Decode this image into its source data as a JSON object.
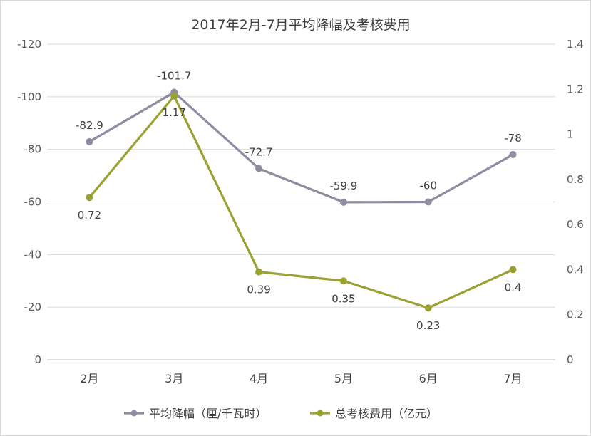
{
  "chart_data": {
    "type": "line",
    "title": "2017年2月-7月平均降幅及考核费用",
    "categories": [
      "2月",
      "3月",
      "4月",
      "5月",
      "6月",
      "7月"
    ],
    "series": [
      {
        "name": "平均降幅（厘/千瓦时）",
        "axis": "left",
        "color": "#8e8ca1",
        "values": [
          -82.9,
          -101.7,
          -72.7,
          -59.9,
          -60,
          -78
        ],
        "labels": [
          "-82.9",
          "-101.7",
          "-72.7",
          "-59.9",
          "-60",
          "-78"
        ]
      },
      {
        "name": "总考核费用（亿元）",
        "axis": "right",
        "color": "#9aa233",
        "values": [
          0.72,
          1.17,
          0.39,
          0.35,
          0.23,
          0.4
        ],
        "labels": [
          "0.72",
          "1.17",
          "0.39",
          "0.35",
          "0.23",
          "0.4"
        ]
      }
    ],
    "y_left": {
      "min": 0,
      "max": -120,
      "reversed": true,
      "ticks": [
        0,
        -20,
        -40,
        -60,
        -80,
        -100,
        -120
      ],
      "tick_labels": [
        "0",
        "-20",
        "-40",
        "-60",
        "-80",
        "-100",
        "-120"
      ]
    },
    "y_right": {
      "min": 0,
      "max": 1.4,
      "ticks": [
        0,
        0.2,
        0.4,
        0.6,
        0.8,
        1,
        1.2,
        1.4
      ],
      "tick_labels": [
        "0",
        "0.2",
        "0.4",
        "0.6",
        "0.8",
        "1",
        "1.2",
        "1.4"
      ]
    },
    "grid": true,
    "legend_position": "bottom"
  }
}
